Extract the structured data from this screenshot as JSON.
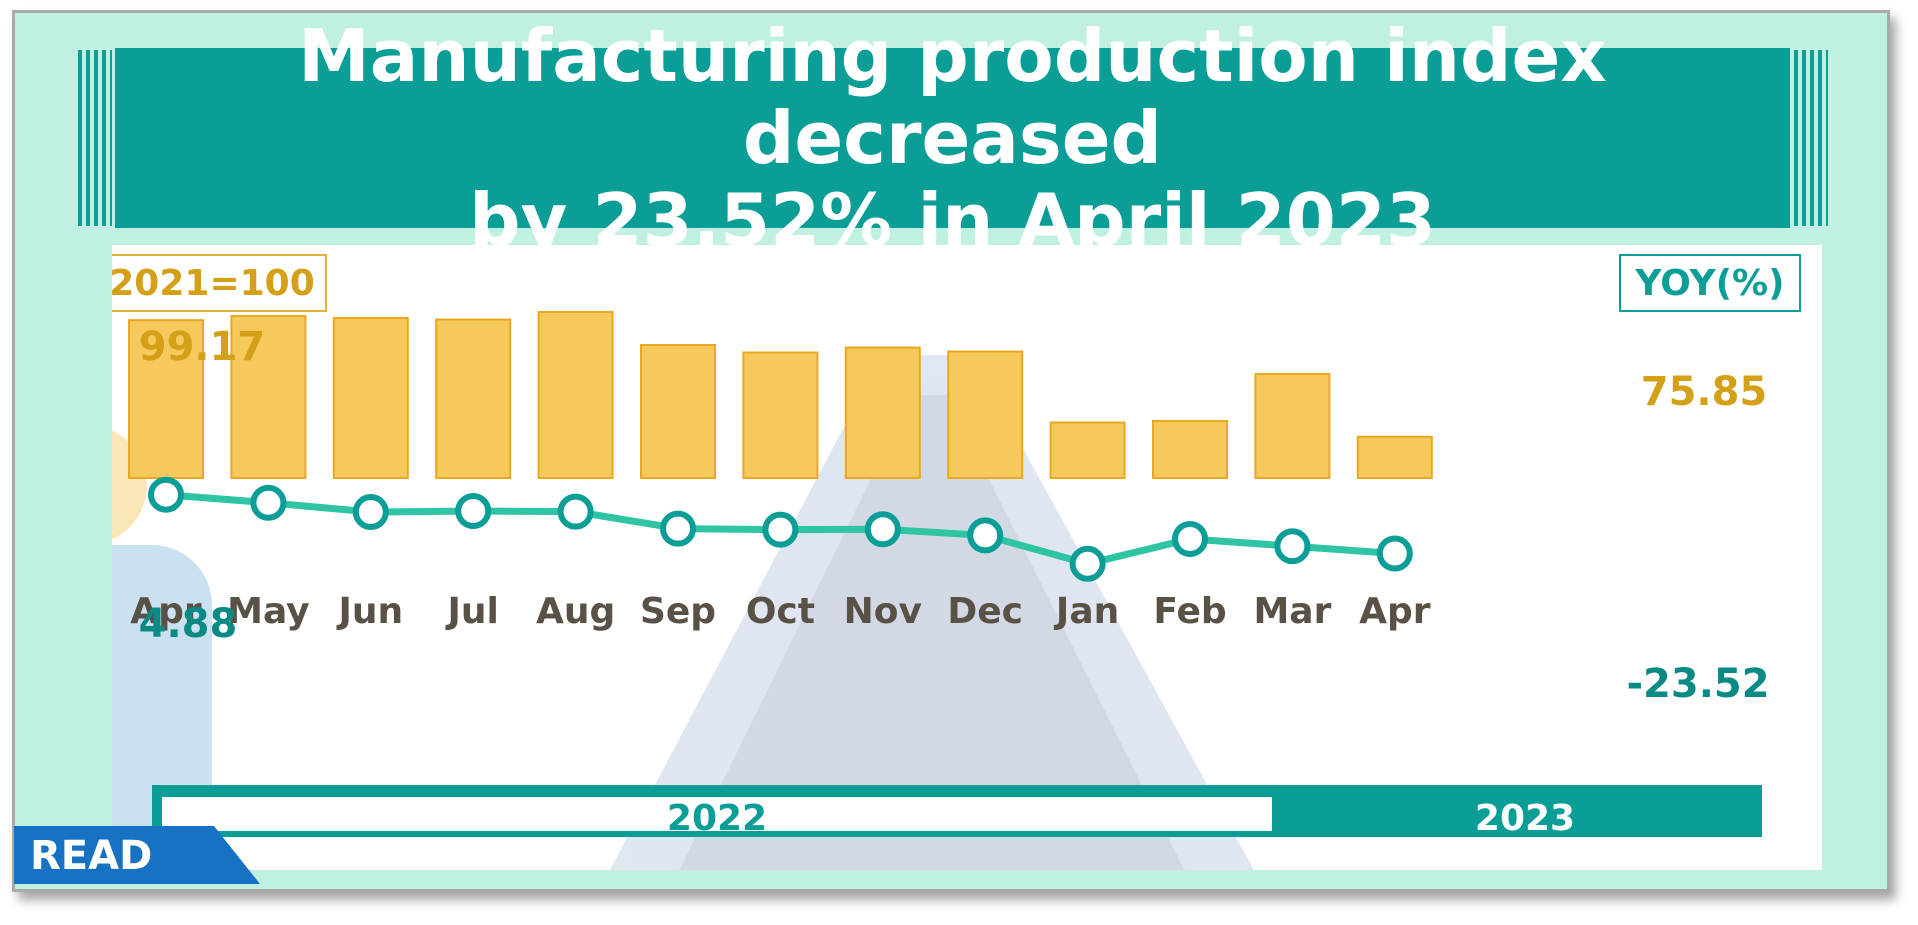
{
  "title": {
    "line1": "Manufacturing production index decreased",
    "line2": "by 23.52% in  April  2023"
  },
  "badge_read": "READ",
  "colors": {
    "bar": "#f5c95c",
    "bar_stroke": "#e8a823",
    "line": "#2fc4a4",
    "teal": "#0a9e97",
    "gold": "#d4a017",
    "month": "#5a5146"
  },
  "chart_data": {
    "type": "bar+line",
    "categories": [
      "Apr",
      "May",
      "Jun",
      "Jul",
      "Aug",
      "Sep",
      "Oct",
      "Nov",
      "Dec",
      "Jan",
      "Feb",
      "Mar",
      "Apr"
    ],
    "index_label": "2021=100",
    "yoy_label": "YOY(%)",
    "series": [
      {
        "axis": "left",
        "type": "bar",
        "values": [
          99.17,
          100.0,
          99.6,
          99.3,
          100.8,
          94.2,
          92.7,
          93.7,
          92.9,
          78.7,
          79.0,
          88.4,
          75.85
        ]
      },
      {
        "axis": "right",
        "type": "line",
        "values": [
          4.88,
          1.0,
          -3.5,
          -3.0,
          -3.3,
          -11.5,
          -12.0,
          -11.8,
          -14.8,
          -28.5,
          -16.5,
          -20.0,
          -23.52
        ]
      }
    ],
    "labels_shown": {
      "bar_first": "99.17",
      "bar_last": "75.85",
      "line_first": "4.88",
      "line_last": "-23.52"
    },
    "years": [
      {
        "label": "2022",
        "span": 9
      },
      {
        "label": "2023",
        "span": 4
      }
    ]
  }
}
